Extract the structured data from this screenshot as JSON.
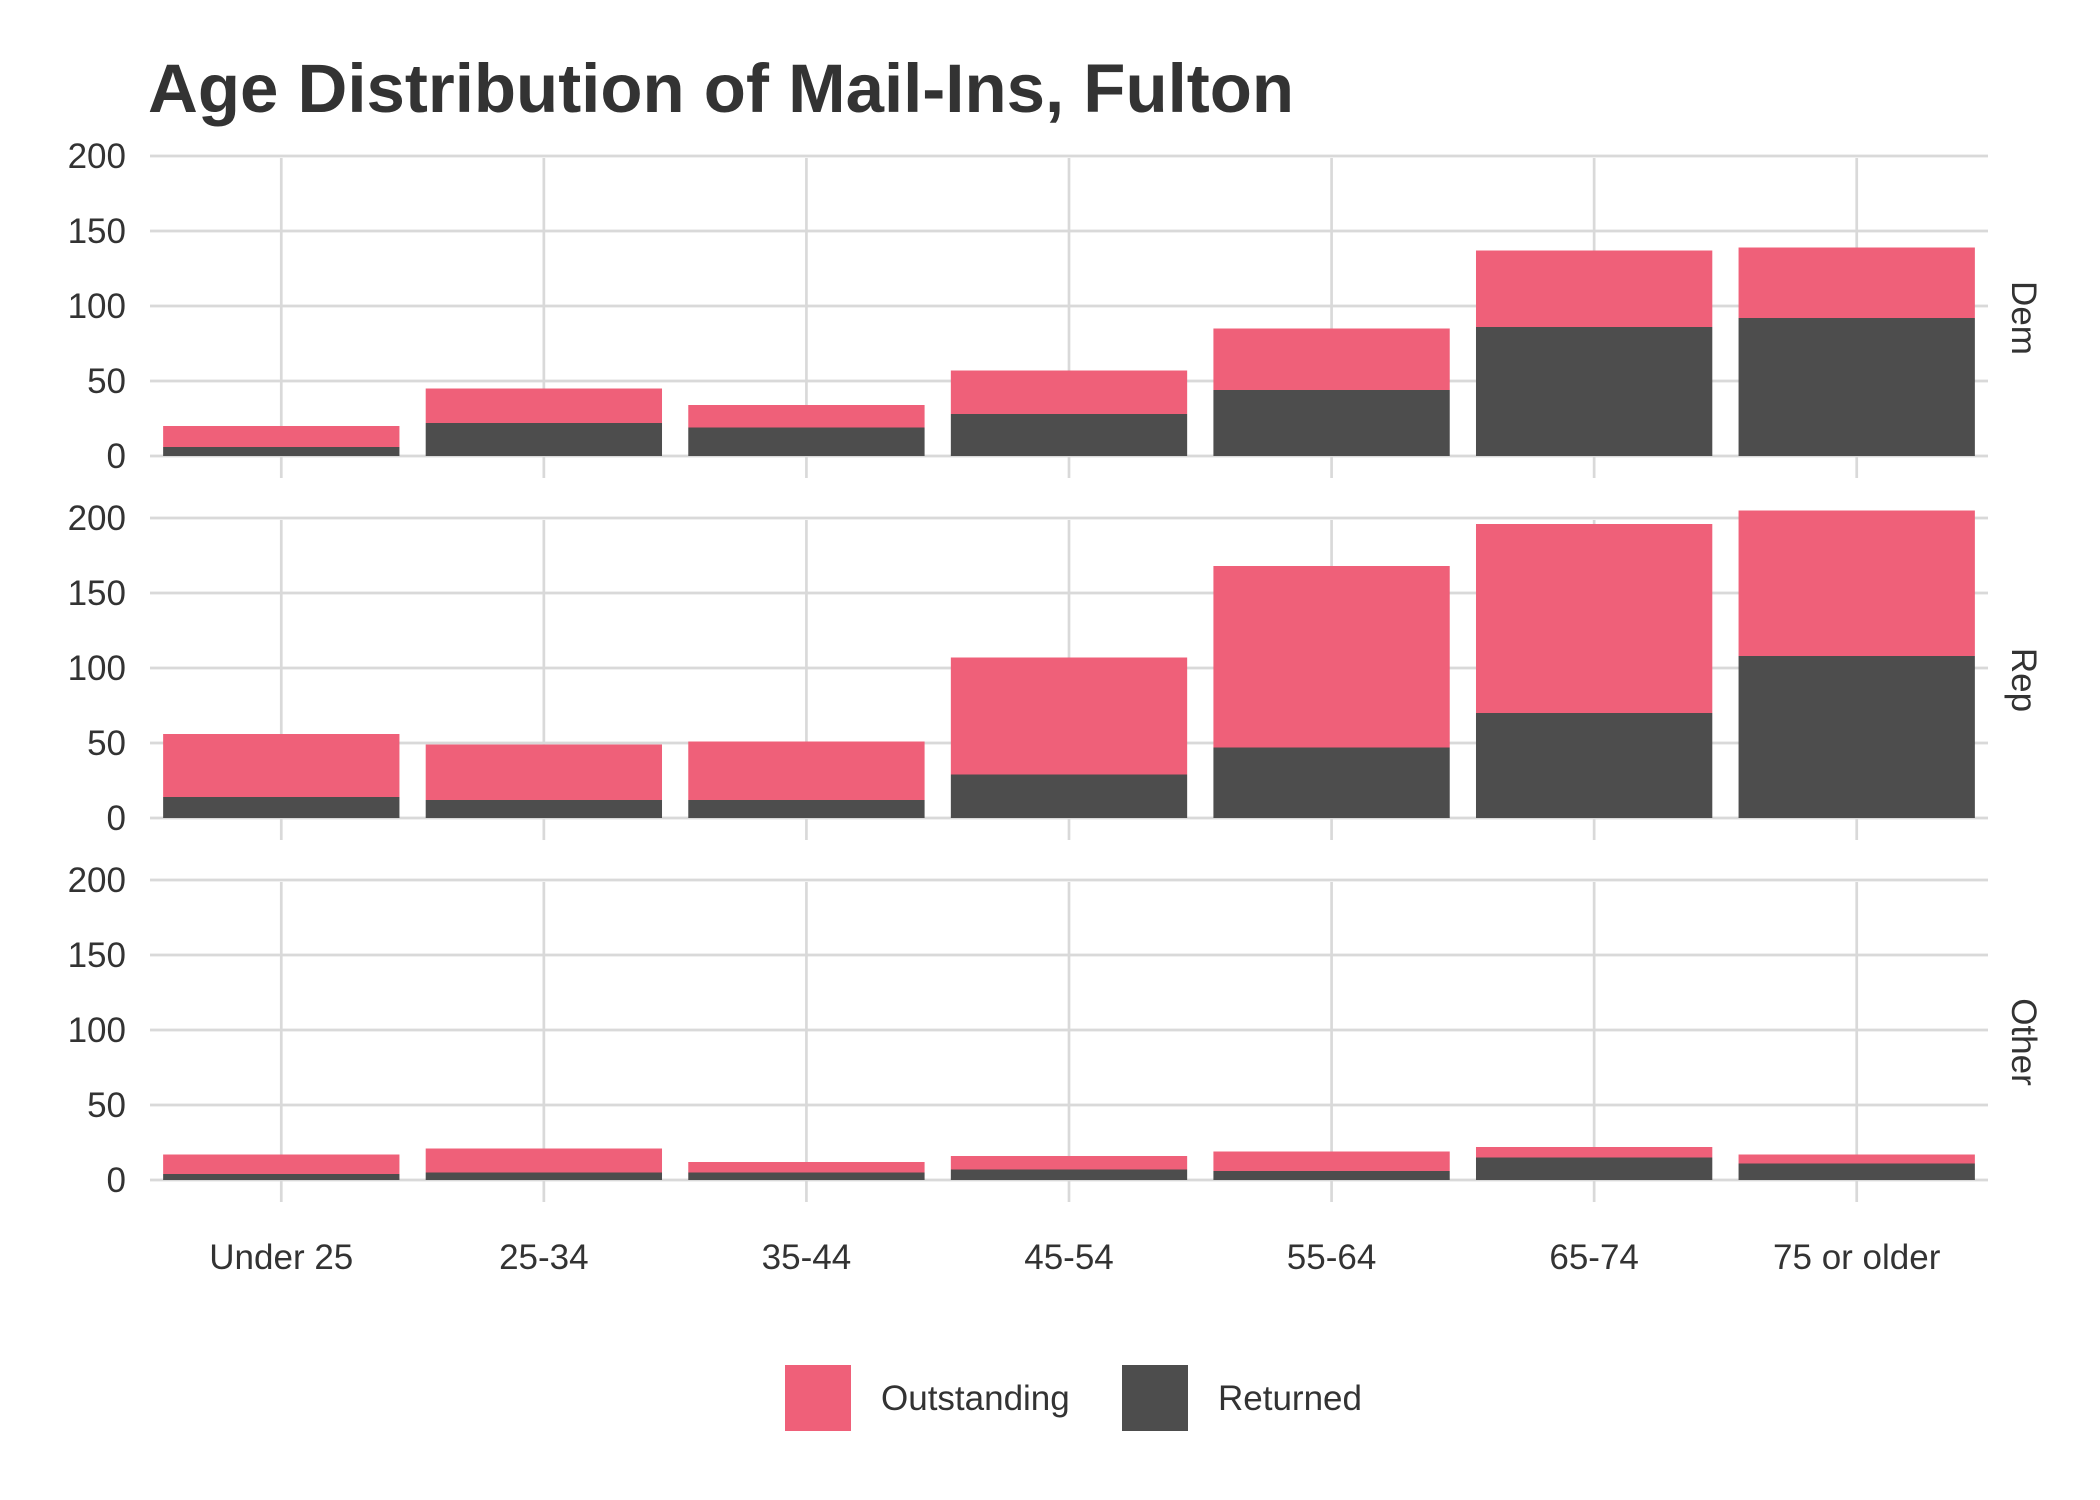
{
  "chart_data": {
    "type": "bar",
    "stacked": true,
    "faceted": true,
    "title": "Age Distribution of Mail-Ins, Fulton",
    "xlabel": "",
    "ylabel": "",
    "categories": [
      "Under 25",
      "25-34",
      "35-44",
      "45-54",
      "55-64",
      "65-74",
      "75 or older"
    ],
    "ylim": [
      0,
      210
    ],
    "yticks": [
      "0",
      "50",
      "100",
      "150",
      "200"
    ],
    "grid": true,
    "legend_position": "bottom",
    "colors": {
      "Outstanding": "#ef6079",
      "Returned": "#4d4d4d"
    },
    "legend": [
      "Outstanding",
      "Returned"
    ],
    "facets": [
      {
        "name": "Dem",
        "series": [
          {
            "name": "Returned",
            "values": [
              6,
              22,
              19,
              28,
              44,
              86,
              92
            ]
          },
          {
            "name": "Outstanding",
            "values": [
              14,
              23,
              15,
              29,
              41,
              51,
              47
            ]
          }
        ]
      },
      {
        "name": "Rep",
        "series": [
          {
            "name": "Returned",
            "values": [
              14,
              12,
              12,
              29,
              47,
              70,
              108
            ]
          },
          {
            "name": "Outstanding",
            "values": [
              42,
              37,
              39,
              78,
              121,
              126,
              97
            ]
          }
        ]
      },
      {
        "name": "Other",
        "series": [
          {
            "name": "Returned",
            "values": [
              4,
              5,
              5,
              7,
              6,
              15,
              11
            ]
          },
          {
            "name": "Outstanding",
            "values": [
              13,
              16,
              7,
              9,
              13,
              7,
              6
            ]
          }
        ]
      }
    ]
  }
}
